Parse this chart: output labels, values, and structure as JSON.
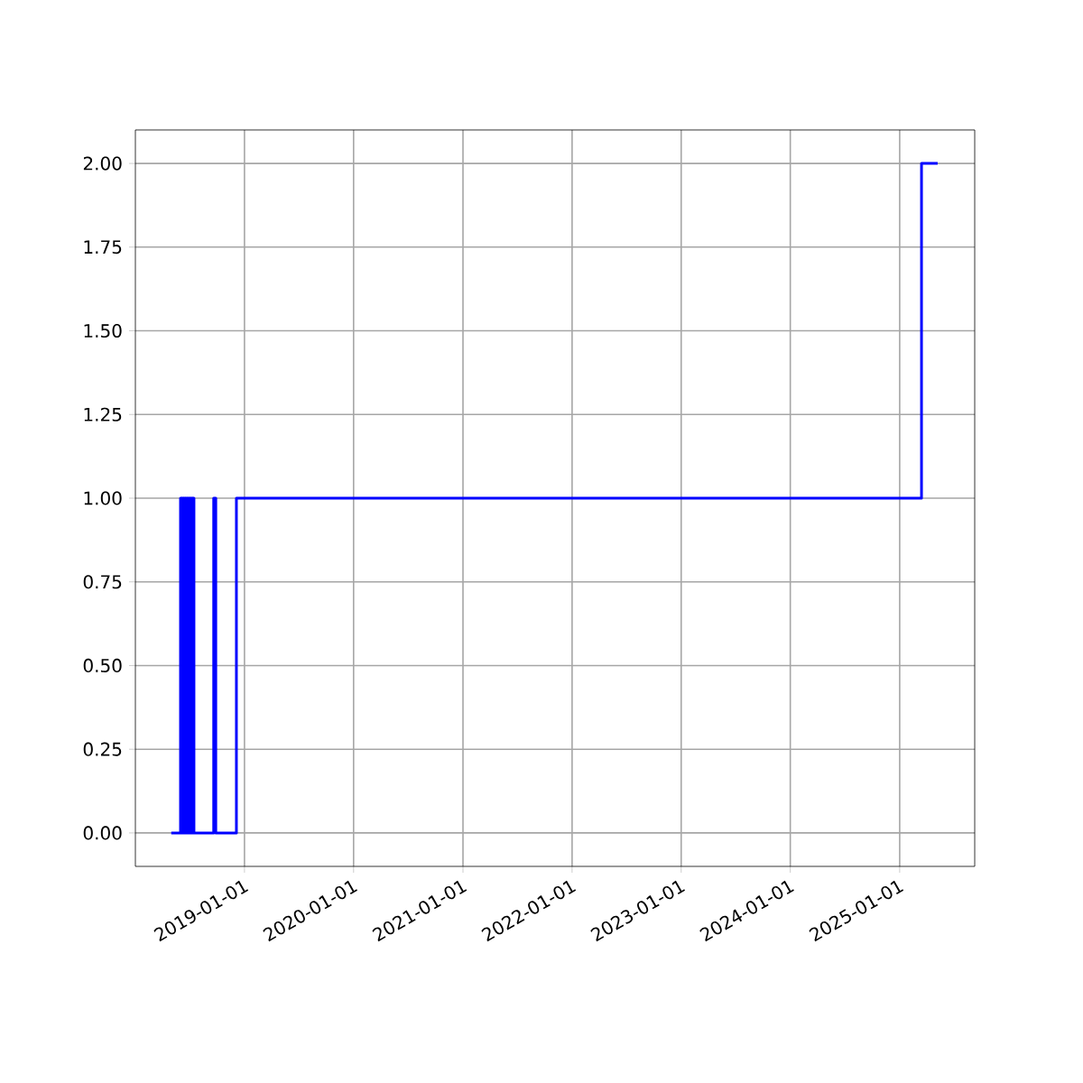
{
  "chart_data": {
    "type": "step",
    "x": [
      "2018-05-01",
      "2018-06-01",
      "2018-06-04",
      "2018-06-07",
      "2018-06-10",
      "2018-06-13",
      "2018-06-16",
      "2018-06-19",
      "2018-06-22",
      "2018-06-25",
      "2018-06-28",
      "2018-07-01",
      "2018-07-04",
      "2018-07-07",
      "2018-07-10",
      "2018-07-13",
      "2018-07-16",
      "2018-09-20",
      "2018-09-27",
      "2018-12-05",
      "2025-03-15",
      "2025-05-08"
    ],
    "values": [
      0,
      1,
      0,
      1,
      0,
      1,
      0,
      1,
      0,
      1,
      0,
      1,
      0,
      1,
      0,
      1,
      0,
      1,
      0,
      1,
      2,
      2
    ],
    "color": "#0000ff",
    "xlim": [
      "2018-01-01",
      "2025-09-09"
    ],
    "ylim": [
      -0.1,
      2.1
    ],
    "xticks": [
      "2019-01-01",
      "2020-01-01",
      "2021-01-01",
      "2022-01-01",
      "2023-01-01",
      "2024-01-01",
      "2025-01-01"
    ],
    "yticks": [
      {
        "value": 0,
        "label": "0.00"
      },
      {
        "value": 0.25,
        "label": "0.25"
      },
      {
        "value": 0.5,
        "label": "0.50"
      },
      {
        "value": 0.75,
        "label": "0.75"
      },
      {
        "value": 1,
        "label": "1.00"
      },
      {
        "value": 1.25,
        "label": "1.25"
      },
      {
        "value": 1.5,
        "label": "1.50"
      },
      {
        "value": 1.75,
        "label": "1.75"
      },
      {
        "value": 2,
        "label": "2.00"
      }
    ],
    "grid": true
  }
}
